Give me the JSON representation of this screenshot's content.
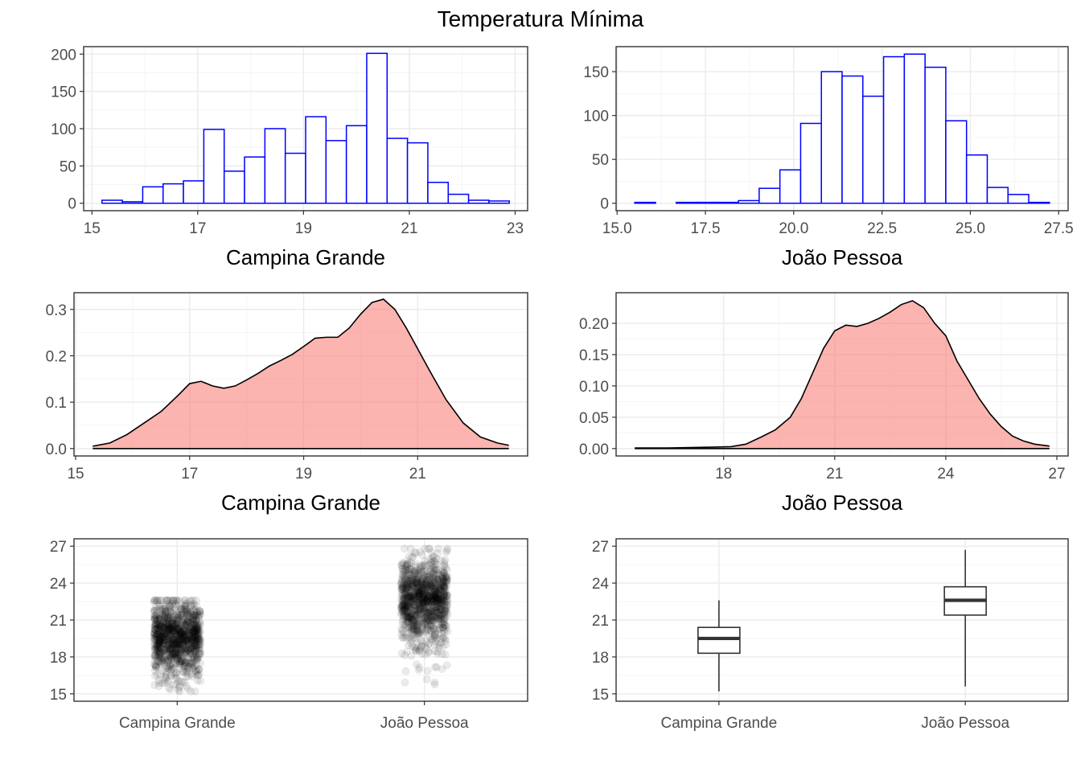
{
  "title": "Temperatura Mínima",
  "colors": {
    "histogram_outline": "#0000FF",
    "histogram_fill": "#FFFFFF",
    "density_fill": "#F8766D",
    "density_fill_alpha": 0.55,
    "density_line": "#000000",
    "jitter_point": "#000000",
    "jitter_alpha": 0.08,
    "grid_major": "#EBEBEB",
    "grid_minor": "#F5F5F5",
    "panel_border": "#333333",
    "boxplot_line": "#333333"
  },
  "chart_data": [
    {
      "type": "bar",
      "subtype": "histogram",
      "title": "",
      "xlabel": "Campina Grande",
      "ylabel": "",
      "xlim": [
        15,
        23
      ],
      "ylim": [
        0,
        200
      ],
      "xticks": [
        15,
        17,
        19,
        21,
        23
      ],
      "yticks": [
        0,
        50,
        100,
        150,
        200
      ],
      "grid": true,
      "bin_width": 0.385,
      "bin_starts": [
        15.19,
        15.575,
        15.96,
        16.345,
        16.73,
        17.115,
        17.5,
        17.885,
        18.27,
        18.655,
        19.04,
        19.425,
        19.81,
        20.195,
        20.58,
        20.965,
        21.35,
        21.735,
        22.12,
        22.505
      ],
      "counts": [
        4,
        2,
        22,
        26,
        30,
        99,
        43,
        62,
        100,
        67,
        116,
        84,
        104,
        201,
        87,
        81,
        28,
        12,
        4,
        3
      ]
    },
    {
      "type": "bar",
      "subtype": "histogram",
      "title": "",
      "xlabel": "João Pessoa",
      "ylabel": "",
      "xlim": [
        15.5,
        27.5
      ],
      "ylim": [
        0,
        170
      ],
      "xticks": [
        15.0,
        17.5,
        20.0,
        22.5,
        25.0,
        27.5
      ],
      "yticks": [
        0,
        50,
        100,
        150
      ],
      "grid": true,
      "bin_width": 0.587,
      "bin_starts": [
        15.5,
        16.087,
        16.674,
        17.261,
        17.848,
        18.435,
        19.022,
        19.609,
        20.196,
        20.783,
        21.37,
        21.957,
        22.544,
        23.131,
        23.718,
        24.305,
        24.892,
        25.479,
        26.066,
        26.653
      ],
      "counts": [
        1,
        0,
        1,
        1,
        1,
        3,
        17,
        38,
        91,
        150,
        145,
        122,
        167,
        170,
        155,
        94,
        55,
        18,
        10,
        1
      ]
    },
    {
      "type": "area",
      "subtype": "density",
      "title": "",
      "xlabel": "Campina Grande",
      "ylabel": "",
      "xlim": [
        15,
        22.6
      ],
      "ylim": [
        0,
        0.32
      ],
      "xticks": [
        15,
        17,
        19,
        21
      ],
      "yticks": [
        0.0,
        0.1,
        0.2,
        0.3
      ],
      "tick_labels_y": [
        "0.0",
        "0.1",
        "0.2",
        "0.3"
      ],
      "grid": true,
      "x": [
        15.3,
        15.6,
        15.9,
        16.2,
        16.5,
        16.8,
        17.0,
        17.2,
        17.4,
        17.6,
        17.8,
        18.0,
        18.2,
        18.4,
        18.6,
        18.8,
        19.0,
        19.2,
        19.4,
        19.6,
        19.8,
        20.0,
        20.2,
        20.4,
        20.6,
        20.8,
        21.0,
        21.2,
        21.5,
        21.8,
        22.1,
        22.4,
        22.6
      ],
      "y": [
        0.005,
        0.012,
        0.03,
        0.055,
        0.08,
        0.115,
        0.14,
        0.145,
        0.135,
        0.13,
        0.135,
        0.148,
        0.162,
        0.178,
        0.19,
        0.203,
        0.22,
        0.238,
        0.24,
        0.24,
        0.26,
        0.29,
        0.315,
        0.322,
        0.3,
        0.26,
        0.215,
        0.17,
        0.105,
        0.055,
        0.025,
        0.012,
        0.007
      ]
    },
    {
      "type": "area",
      "subtype": "density",
      "title": "",
      "xlabel": "João Pessoa",
      "ylabel": "",
      "xlim": [
        15.6,
        26.8
      ],
      "ylim": [
        0,
        0.237
      ],
      "xticks": [
        18,
        21,
        24,
        27
      ],
      "yticks": [
        0.0,
        0.05,
        0.1,
        0.15,
        0.2
      ],
      "tick_labels_y": [
        "0.00",
        "0.05",
        "0.10",
        "0.15",
        "0.20"
      ],
      "grid": true,
      "x": [
        15.6,
        16.5,
        17.5,
        18.2,
        18.6,
        19.0,
        19.4,
        19.8,
        20.1,
        20.4,
        20.7,
        21.0,
        21.3,
        21.6,
        21.9,
        22.2,
        22.5,
        22.8,
        23.1,
        23.4,
        23.7,
        24.0,
        24.3,
        24.6,
        24.9,
        25.2,
        25.5,
        25.8,
        26.1,
        26.4,
        26.8
      ],
      "y": [
        0.001,
        0.001,
        0.002,
        0.003,
        0.007,
        0.018,
        0.03,
        0.05,
        0.08,
        0.12,
        0.16,
        0.188,
        0.197,
        0.195,
        0.2,
        0.208,
        0.218,
        0.23,
        0.236,
        0.225,
        0.2,
        0.18,
        0.14,
        0.11,
        0.08,
        0.055,
        0.035,
        0.02,
        0.012,
        0.007,
        0.004
      ]
    },
    {
      "type": "scatter",
      "subtype": "jitter",
      "title": "",
      "xlabel": "",
      "ylabel": "",
      "categories": [
        "Campina Grande",
        "João Pessoa"
      ],
      "ylim": [
        15,
        27
      ],
      "yticks": [
        15,
        18,
        21,
        24,
        27
      ],
      "grid": true,
      "series": [
        {
          "category": "Campina Grande",
          "min": 15.2,
          "q1": 18.4,
          "median": 19.5,
          "q3": 20.4,
          "max": 22.6,
          "n": 1100
        },
        {
          "category": "João Pessoa",
          "min": 15.5,
          "q1": 21.4,
          "median": 22.6,
          "q3": 23.7,
          "max": 26.8,
          "n": 1100
        }
      ]
    },
    {
      "type": "box",
      "subtype": "boxplot",
      "title": "",
      "xlabel": "",
      "ylabel": "",
      "categories": [
        "Campina Grande",
        "João Pessoa"
      ],
      "ylim": [
        15,
        27
      ],
      "yticks": [
        15,
        18,
        21,
        24,
        27
      ],
      "grid": true,
      "boxes": [
        {
          "category": "Campina Grande",
          "min": 15.2,
          "q1": 18.3,
          "median": 19.5,
          "q3": 20.4,
          "max": 22.6
        },
        {
          "category": "João Pessoa",
          "min": 15.6,
          "q1": 21.4,
          "median": 22.6,
          "q3": 23.7,
          "max": 26.7
        }
      ]
    }
  ]
}
